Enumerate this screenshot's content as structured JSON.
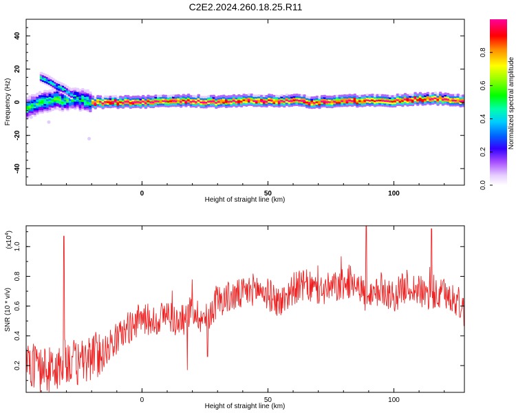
{
  "title": "C2E2.2024.260.18.25.R11",
  "colors": {
    "series": "#ee2222",
    "colormap": [
      "#ffffff",
      "#e6ccff",
      "#b266ff",
      "#7a00ff",
      "#0000ff",
      "#0080ff",
      "#00e6e6",
      "#00ff80",
      "#00ff00",
      "#80ff00",
      "#ffff00",
      "#ff9900",
      "#ff0000",
      "#ff00aa"
    ]
  },
  "chart_data": [
    {
      "type": "heatmap",
      "xlabel": "Height of straight line (km)",
      "ylabel": "Frequency (Hz)",
      "xlim": [
        -46,
        128
      ],
      "ylim": [
        -50,
        50
      ],
      "xticks": [
        0,
        50,
        100
      ],
      "yticks": [
        -40,
        -20,
        0,
        20,
        40
      ],
      "colorbar": {
        "label": "Normalized spectral amplitude",
        "range": [
          0,
          1
        ],
        "ticks": [
          "0.0",
          "0.2",
          "0.4",
          "0.6",
          "0.8"
        ]
      },
      "ridge": {
        "description_points_x": [
          -46,
          -40,
          -35,
          -30,
          -25,
          -20,
          -10,
          0,
          10,
          20,
          30,
          40,
          50,
          60,
          70,
          80,
          90,
          100,
          110,
          120,
          128
        ],
        "frequency": [
          -4,
          0,
          2,
          1,
          2,
          0,
          0,
          0,
          1,
          1,
          0,
          1,
          1,
          1,
          0,
          1,
          1,
          1,
          2,
          2,
          1
        ]
      },
      "branch": {
        "x": [
          -40,
          -37,
          -34,
          -31,
          -28
        ],
        "frequency": [
          15,
          13,
          10,
          8,
          5
        ]
      }
    },
    {
      "type": "line",
      "xlabel": "Height of straight line (km)",
      "ylabel": "SNR (10 * v/v)",
      "exponent": "(x10",
      "exponent_power": "4",
      "exponent_close": ")",
      "xlim": [
        -46,
        128
      ],
      "ylim": [
        0.02,
        1.14
      ],
      "xticks": [
        0,
        50,
        100
      ],
      "yticks": [
        0.2,
        0.4,
        0.6,
        0.8,
        1.0
      ],
      "ytick_labels": [
        "0.2",
        "0.4",
        "0.6",
        "0.8",
        "1.0"
      ],
      "envelope": {
        "x": [
          -46,
          -40,
          -35,
          -30,
          -25,
          -20,
          -15,
          -10,
          -5,
          0,
          5,
          10,
          15,
          20,
          25,
          30,
          35,
          40,
          45,
          50,
          55,
          60,
          65,
          70,
          75,
          80,
          85,
          90,
          95,
          100,
          105,
          110,
          115,
          120,
          125,
          128
        ],
        "mean": [
          0.22,
          0.18,
          0.16,
          0.24,
          0.2,
          0.26,
          0.3,
          0.38,
          0.46,
          0.52,
          0.5,
          0.55,
          0.48,
          0.58,
          0.5,
          0.64,
          0.66,
          0.68,
          0.72,
          0.68,
          0.62,
          0.72,
          0.74,
          0.7,
          0.72,
          0.74,
          0.78,
          0.62,
          0.72,
          0.66,
          0.74,
          0.7,
          0.66,
          0.68,
          0.64,
          0.56
        ]
      },
      "peaks": [
        {
          "x": -31,
          "y": 1.07
        },
        {
          "x": 89,
          "y": 1.14
        },
        {
          "x": 115,
          "y": 1.12
        },
        {
          "x": 18,
          "y": 0.17
        },
        {
          "x": 26,
          "y": 0.26
        }
      ]
    }
  ]
}
